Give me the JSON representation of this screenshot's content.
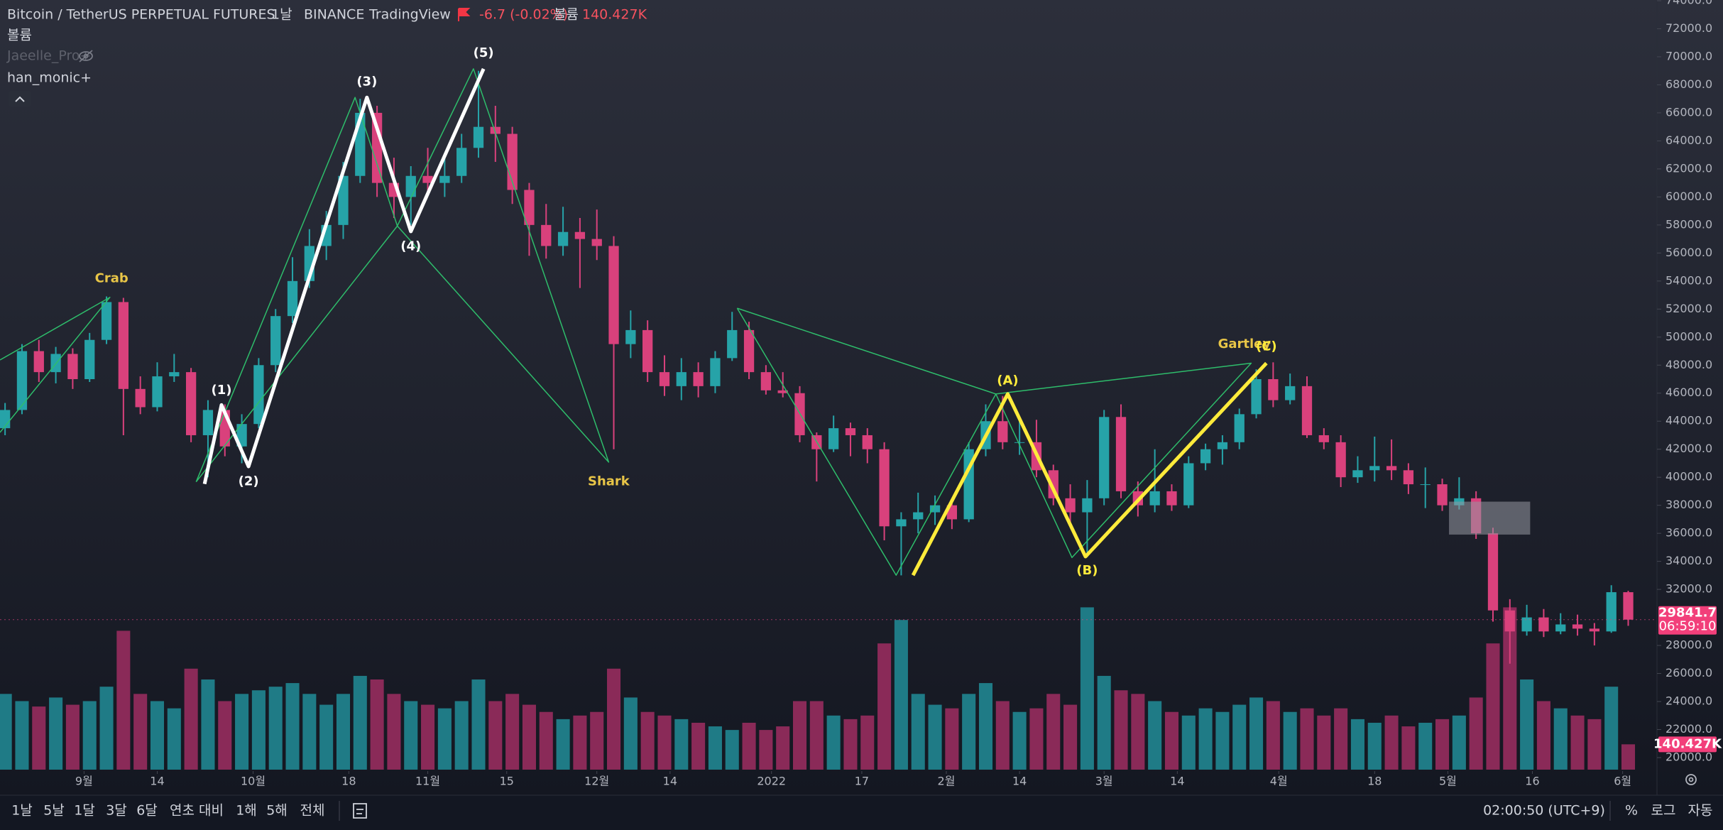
{
  "header": {
    "symbol": "Bitcoin / TetherUS PERPETUAL FUTURES",
    "interval": "1날",
    "exchange": "BINANCE",
    "source": "TradingView",
    "change": "-6.7 (-0.02%)",
    "volume_title": "볼륨"
  },
  "indicators": [
    "볼륨",
    "Jaeelle_Pro+",
    "han_monic+"
  ],
  "toolbar": {
    "ranges": [
      "1날",
      "5날",
      "1달",
      "3달",
      "6달",
      "연초 대비",
      "1해",
      "5해",
      "전체"
    ],
    "time": "02:00:50 (UTC+9)",
    "percent": "%",
    "log": "로그",
    "auto": "자동"
  },
  "chart_data": {
    "type": "candlestick",
    "up_color": "#26a3a8",
    "down_color": "#d9417c",
    "volume_up_color": "#1f7b86",
    "volume_down_color": "#8a2a58",
    "xlim": [
      -0.3,
      97.7
    ],
    "ylim": [
      20000,
      74000
    ],
    "vlim": [
      0,
      1000
    ],
    "grid": false,
    "xticks": [
      {
        "value": 4.67,
        "label": "9월"
      },
      {
        "value": 9,
        "label": "14"
      },
      {
        "value": 14.67,
        "label": "10월"
      },
      {
        "value": 20.33,
        "label": "18"
      },
      {
        "value": 25,
        "label": "11월"
      },
      {
        "value": 29.67,
        "label": "15"
      },
      {
        "value": 35,
        "label": "12월"
      },
      {
        "value": 39.33,
        "label": "14"
      },
      {
        "value": 45.33,
        "label": "2022"
      },
      {
        "value": 50.67,
        "label": "17"
      },
      {
        "value": 55.67,
        "label": "2월"
      },
      {
        "value": 60,
        "label": "14"
      },
      {
        "value": 65,
        "label": "3월"
      },
      {
        "value": 69.33,
        "label": "14"
      },
      {
        "value": 75.33,
        "label": "4월"
      },
      {
        "value": 81,
        "label": "18"
      },
      {
        "value": 85.33,
        "label": "5월"
      },
      {
        "value": 90.33,
        "label": "16"
      },
      {
        "value": 95.67,
        "label": "6월"
      }
    ],
    "yticks": [
      {
        "value": 20000,
        "label": "20000.0"
      },
      {
        "value": 22000,
        "label": "22000.0"
      },
      {
        "value": 24000,
        "label": "24000.0"
      },
      {
        "value": 26000,
        "label": "26000.0"
      },
      {
        "value": 28000,
        "label": "28000.0"
      },
      {
        "value": 32000,
        "label": "32000.0"
      },
      {
        "value": 34000,
        "label": "34000.0"
      },
      {
        "value": 36000,
        "label": "36000.0"
      },
      {
        "value": 38000,
        "label": "38000.0"
      },
      {
        "value": 40000,
        "label": "40000.0"
      },
      {
        "value": 42000,
        "label": "42000.0"
      },
      {
        "value": 44000,
        "label": "44000.0"
      },
      {
        "value": 46000,
        "label": "46000.0"
      },
      {
        "value": 48000,
        "label": "48000.0"
      },
      {
        "value": 50000,
        "label": "50000.0"
      },
      {
        "value": 52000,
        "label": "52000.0"
      },
      {
        "value": 54000,
        "label": "54000.0"
      },
      {
        "value": 56000,
        "label": "56000.0"
      },
      {
        "value": 58000,
        "label": "58000.0"
      },
      {
        "value": 60000,
        "label": "60000.0"
      },
      {
        "value": 62000,
        "label": "62000.0"
      },
      {
        "value": 64000,
        "label": "64000.0"
      },
      {
        "value": 66000,
        "label": "66000.0"
      },
      {
        "value": 68000,
        "label": "68000.0"
      },
      {
        "value": 70000,
        "label": "70000.0"
      },
      {
        "value": 72000,
        "label": "72000.0"
      },
      {
        "value": 74000,
        "label": "74000.0"
      }
    ],
    "ohlc": [
      [
        43500,
        45300,
        43000,
        44800
      ],
      [
        44800,
        49500,
        44500,
        49000
      ],
      [
        49000,
        49800,
        46800,
        47500
      ],
      [
        47500,
        49300,
        46700,
        48800
      ],
      [
        48800,
        49200,
        46300,
        47000
      ],
      [
        47000,
        50300,
        46800,
        49800
      ],
      [
        49800,
        52900,
        49500,
        52500
      ],
      [
        52500,
        52800,
        43000,
        46300
      ],
      [
        46300,
        47200,
        44500,
        45000
      ],
      [
        45000,
        48200,
        44700,
        47200
      ],
      [
        47200,
        48800,
        46800,
        47500
      ],
      [
        47500,
        47800,
        42500,
        43000
      ],
      [
        43000,
        45500,
        40000,
        44800
      ],
      [
        44800,
        45200,
        41500,
        42200
      ],
      [
        42200,
        44500,
        41000,
        43800
      ],
      [
        43800,
        48500,
        43500,
        48000
      ],
      [
        48000,
        52000,
        47500,
        51500
      ],
      [
        51500,
        55700,
        51000,
        54000
      ],
      [
        54000,
        57700,
        53500,
        56500
      ],
      [
        56500,
        59000,
        55500,
        58000
      ],
      [
        58000,
        62500,
        57000,
        61500
      ],
      [
        61500,
        67000,
        61000,
        66000
      ],
      [
        66000,
        66500,
        60000,
        61000
      ],
      [
        61000,
        62800,
        58500,
        60000
      ],
      [
        60000,
        62200,
        58000,
        61500
      ],
      [
        61500,
        63500,
        60200,
        61000
      ],
      [
        61000,
        63000,
        60000,
        61500
      ],
      [
        61500,
        64500,
        61000,
        63500
      ],
      [
        63500,
        69000,
        62800,
        65000
      ],
      [
        65000,
        66500,
        62500,
        64500
      ],
      [
        64500,
        65000,
        59500,
        60500
      ],
      [
        60500,
        61000,
        55800,
        58000
      ],
      [
        58000,
        59500,
        55600,
        56500
      ],
      [
        56500,
        59300,
        55800,
        57500
      ],
      [
        57500,
        58500,
        53500,
        57000
      ],
      [
        57000,
        59100,
        55500,
        56500
      ],
      [
        56500,
        57200,
        42000,
        49500
      ],
      [
        49500,
        51900,
        48500,
        50500
      ],
      [
        50500,
        51200,
        46800,
        47500
      ],
      [
        47500,
        48700,
        45800,
        46500
      ],
      [
        46500,
        48500,
        45500,
        47500
      ],
      [
        47500,
        48200,
        45700,
        46500
      ],
      [
        46500,
        49000,
        46000,
        48500
      ],
      [
        48500,
        51800,
        48300,
        50500
      ],
      [
        50500,
        51100,
        47000,
        47500
      ],
      [
        47500,
        48000,
        45900,
        46200
      ],
      [
        46200,
        47500,
        45700,
        46000
      ],
      [
        46000,
        46500,
        42500,
        43000
      ],
      [
        43000,
        43200,
        39700,
        42000
      ],
      [
        42000,
        44400,
        41800,
        43500
      ],
      [
        43500,
        43900,
        41500,
        43000
      ],
      [
        43000,
        43500,
        41000,
        42000
      ],
      [
        42000,
        42500,
        35500,
        36500
      ],
      [
        36500,
        37500,
        33000,
        37000
      ],
      [
        37000,
        38900,
        36000,
        37500
      ],
      [
        37500,
        38700,
        36600,
        38000
      ],
      [
        38000,
        38300,
        36300,
        37000
      ],
      [
        37000,
        42500,
        36800,
        42000
      ],
      [
        42000,
        45200,
        41500,
        44000
      ],
      [
        44000,
        45800,
        42000,
        42500
      ],
      [
        42500,
        44000,
        41600,
        42500
      ],
      [
        42500,
        44100,
        40000,
        40500
      ],
      [
        40500,
        40900,
        38000,
        38500
      ],
      [
        38500,
        39500,
        36800,
        37500
      ],
      [
        37500,
        39800,
        34300,
        38500
      ],
      [
        38500,
        44800,
        38000,
        44300
      ],
      [
        44300,
        45200,
        38500,
        39000
      ],
      [
        39000,
        39700,
        37200,
        38000
      ],
      [
        38000,
        42000,
        37500,
        39000
      ],
      [
        39000,
        39500,
        37600,
        38000
      ],
      [
        38000,
        41500,
        37800,
        41000
      ],
      [
        41000,
        42400,
        40500,
        42000
      ],
      [
        42000,
        43000,
        40900,
        42500
      ],
      [
        42500,
        44900,
        42000,
        44500
      ],
      [
        44500,
        47700,
        44200,
        47000
      ],
      [
        47000,
        48200,
        45000,
        45500
      ],
      [
        45500,
        47400,
        45200,
        46500
      ],
      [
        46500,
        47200,
        42800,
        43000
      ],
      [
        43000,
        43500,
        42000,
        42500
      ],
      [
        42500,
        43000,
        39300,
        40000
      ],
      [
        40000,
        41500,
        39600,
        40500
      ],
      [
        40500,
        42900,
        39700,
        40800
      ],
      [
        40800,
        42700,
        39800,
        40500
      ],
      [
        40500,
        41000,
        38800,
        39500
      ],
      [
        39500,
        40700,
        37800,
        39500
      ],
      [
        39500,
        39900,
        37600,
        38000
      ],
      [
        38000,
        40000,
        37700,
        38500
      ],
      [
        38500,
        39000,
        35600,
        36000
      ],
      [
        36000,
        36400,
        29700,
        30500
      ],
      [
        30500,
        31300,
        26700,
        29000
      ],
      [
        29000,
        30900,
        28700,
        30000
      ],
      [
        30000,
        30600,
        28600,
        29000
      ],
      [
        29000,
        30300,
        28800,
        29500
      ],
      [
        29500,
        30200,
        28700,
        29200
      ],
      [
        29200,
        29600,
        28000,
        29000
      ],
      [
        29000,
        32300,
        28900,
        31800
      ],
      [
        31800,
        31900,
        29400,
        29841.7
      ]
    ],
    "volumes": [
      420,
      380,
      350,
      400,
      360,
      380,
      460,
      770,
      420,
      380,
      340,
      560,
      500,
      380,
      420,
      440,
      460,
      480,
      420,
      360,
      420,
      520,
      500,
      420,
      380,
      360,
      340,
      380,
      500,
      380,
      420,
      360,
      320,
      280,
      300,
      320,
      560,
      400,
      320,
      300,
      280,
      260,
      240,
      220,
      260,
      220,
      240,
      380,
      380,
      300,
      280,
      300,
      700,
      830,
      420,
      360,
      340,
      420,
      480,
      380,
      320,
      340,
      420,
      360,
      900,
      520,
      440,
      420,
      380,
      320,
      300,
      340,
      320,
      360,
      400,
      380,
      320,
      340,
      300,
      340,
      280,
      260,
      300,
      240,
      260,
      280,
      300,
      400,
      700,
      900,
      500,
      380,
      340,
      300,
      280,
      460,
      140.427
    ],
    "volume_label": "140.427K",
    "countdown": "06:59:10",
    "drawings": [
      {
        "color": "#2ebd6b",
        "width": 1.5,
        "x": [
          -0.3,
          6.2,
          -0.3
        ],
        "y": [
          48370,
          52840,
          43200
        ]
      },
      {
        "color": "#2ebd6b",
        "width": 1.5,
        "x": [
          11.3,
          20.7,
          23.2,
          27.7,
          35.7,
          23.2,
          11.3
        ],
        "y": [
          39670,
          67100,
          57930,
          69140,
          41080,
          57930,
          39670
        ]
      },
      {
        "color": "#2ebd6b",
        "width": 1.5,
        "x": [
          43.3,
          52.7,
          58.6,
          63.1,
          73.7,
          58.6,
          43.3
        ],
        "y": [
          52060,
          33010,
          45940,
          34270,
          48140,
          45940,
          52060
        ]
      },
      {
        "color": "#ffffff",
        "width": 5,
        "x": [
          11.8,
          12.8,
          14.4,
          21.4,
          24.0,
          28.3
        ],
        "y": [
          39520,
          45160,
          40770,
          67100,
          57540,
          69140
        ]
      },
      {
        "color": "#ffeb3b",
        "width": 5,
        "x": [
          53.7,
          59.3,
          63.9,
          74.6
        ],
        "y": [
          33010,
          45940,
          34340,
          48140
        ]
      }
    ],
    "box": {
      "color": "#9598a1",
      "x": [
        85.4,
        90.2
      ],
      "y": [
        38260,
        35910
      ]
    },
    "annotations": [
      {
        "text": "Crab",
        "x": 6.3,
        "y": 54170,
        "color": "#e8c547"
      },
      {
        "text": "(1)",
        "x": 12.8,
        "y": 46180,
        "color": "#ffffff"
      },
      {
        "text": "(2)",
        "x": 14.4,
        "y": 39670,
        "color": "#ffffff"
      },
      {
        "text": "(3)",
        "x": 21.4,
        "y": 68200,
        "color": "#ffffff"
      },
      {
        "text": "(4)",
        "x": 24.0,
        "y": 56450,
        "color": "#ffffff"
      },
      {
        "text": "(5)",
        "x": 28.3,
        "y": 70240,
        "color": "#ffffff"
      },
      {
        "text": "Shark",
        "x": 35.7,
        "y": 39670,
        "color": "#e8c547"
      },
      {
        "text": "(A)",
        "x": 59.3,
        "y": 46880,
        "color": "#ffeb3b"
      },
      {
        "text": "(B)",
        "x": 64.0,
        "y": 33330,
        "color": "#ffeb3b"
      },
      {
        "text": "Gartley",
        "x": 73.3,
        "y": 49470,
        "color": "#e8c547"
      },
      {
        "text": "(C)",
        "x": 74.6,
        "y": 49310,
        "color": "#ffeb3b"
      }
    ]
  }
}
